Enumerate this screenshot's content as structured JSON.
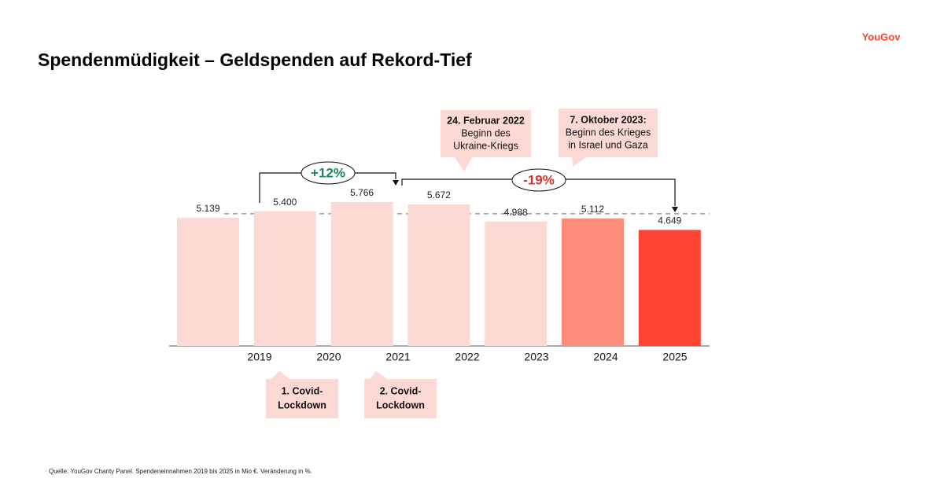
{
  "brand": "YouGov",
  "chart_data": {
    "type": "bar",
    "title": "Spendenmüdigkeit – Geldspenden auf  Rekord-Tief",
    "categories": [
      "2019",
      "2020",
      "2021",
      "2022",
      "2023",
      "2024",
      "2025"
    ],
    "values": [
      5139,
      5400,
      5766,
      5672,
      4988,
      5112,
      4649
    ],
    "value_labels": [
      "5.139",
      "5.400",
      "5.766",
      "5.672",
      "4.988",
      "5.112",
      "4.649"
    ],
    "colors": [
      "#fdd9d6",
      "#fdd9d6",
      "#fdd9d6",
      "#fdd9d6",
      "#fdd9d6",
      "#fd8c7c",
      "#ff4433"
    ],
    "changes": [
      {
        "label": "+12%",
        "color": "#1a8a5a"
      },
      {
        "label": "-19%",
        "color": "#d9332b"
      }
    ],
    "callouts": [
      {
        "bold": [
          "24. Februar 2022"
        ],
        "lines": [
          "Beginn des",
          "Ukraine-Kriegs"
        ]
      },
      {
        "bold": [
          "7. Oktober 2023:"
        ],
        "lines": [
          "Beginn des Krieges",
          "in Israel und Gaza"
        ]
      },
      {
        "bold": [
          "1. Covid-",
          "Lockdown"
        ]
      },
      {
        "bold": [
          "2. Covid-",
          "Lockdown"
        ]
      }
    ],
    "source": "Quelle: YouGov Charity Panel. Spendeneinnahmen 2019 bis 2025 in Mio €. Veränderung in %."
  }
}
